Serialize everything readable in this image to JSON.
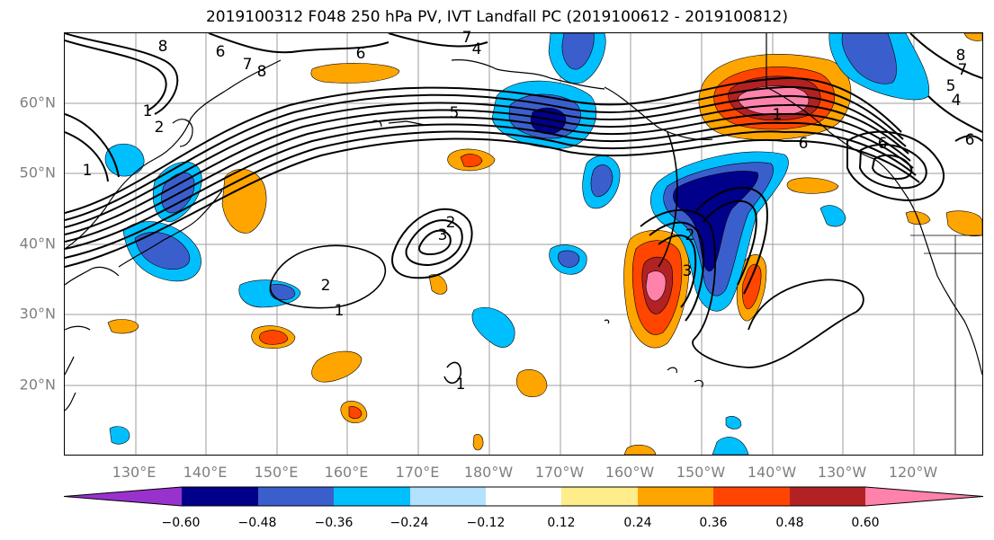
{
  "title": "2019100312 F048 250 hPa PV, IVT Landfall PC (2019100612 - 2019100812)",
  "lat_labels": [
    "60°N",
    "50°N",
    "40°N",
    "30°N",
    "20°N"
  ],
  "lon_labels": [
    "130°E",
    "140°E",
    "150°E",
    "160°E",
    "170°E",
    "180°W",
    "170°W",
    "160°W",
    "150°W",
    "140°W",
    "130°W",
    "120°W"
  ],
  "colorbar": {
    "colors": [
      "#9932cc",
      "#00008b",
      "#3a5fcd",
      "#00bfff",
      "#b2e2ff",
      "#ffffff",
      "#ffec8b",
      "#ffa500",
      "#ff4500",
      "#b22222",
      "#ff82ab"
    ],
    "tick_labels": [
      "−0.60",
      "−0.48",
      "−0.36",
      "−0.24",
      "−0.12",
      "0.12",
      "0.24",
      "0.36",
      "0.48",
      "0.60"
    ]
  },
  "contour_labels": [
    "8",
    "6",
    "7",
    "8",
    "6",
    "7",
    "4",
    "1",
    "2",
    "5",
    "3",
    "2",
    "2",
    "1",
    "1",
    "2",
    "3",
    "1",
    "6",
    "6",
    "8",
    "5",
    "7",
    "4",
    "1",
    "6"
  ]
}
